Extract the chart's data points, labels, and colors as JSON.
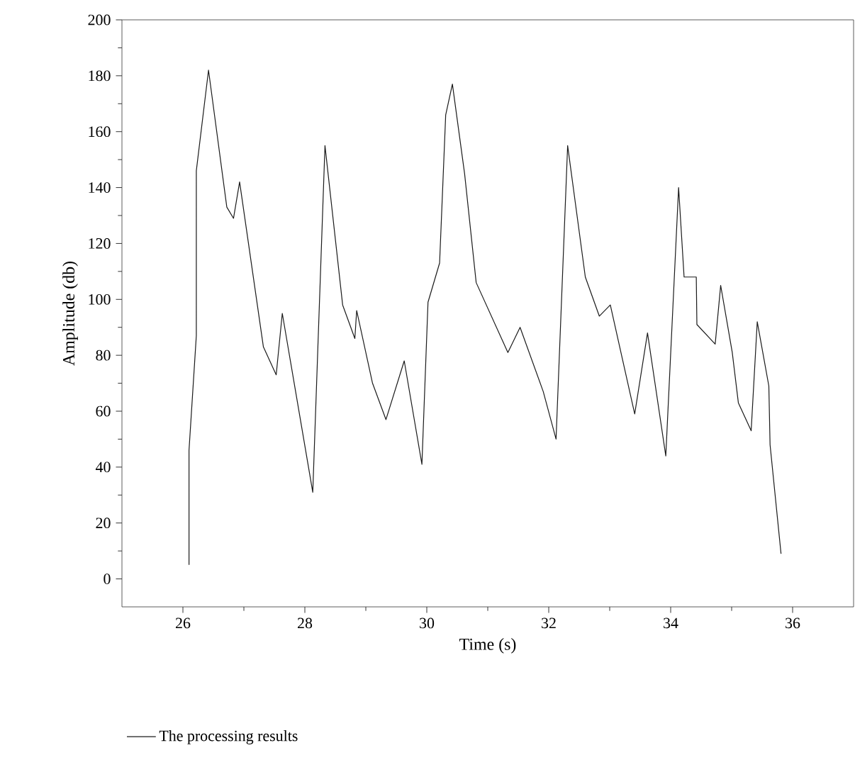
{
  "chart_data": {
    "type": "line",
    "xlabel": "Time (s)",
    "ylabel": "Amplitude (db)",
    "xlim": [
      25,
      37
    ],
    "xticks": [
      26,
      28,
      30,
      32,
      34,
      36
    ],
    "ylim": [
      -10,
      200
    ],
    "yticks": [
      0,
      20,
      40,
      60,
      80,
      100,
      120,
      140,
      160,
      180,
      200
    ],
    "grid": false,
    "legend": "bottom",
    "marker": "none",
    "line_style": "solid",
    "series": [
      {
        "name": "The processing results",
        "color": "#1a1a1a",
        "x": [
          26.1,
          26.1,
          26.22,
          26.22,
          26.42,
          26.72,
          26.83,
          26.93,
          27.32,
          27.53,
          27.63,
          28.13,
          28.33,
          28.62,
          28.82,
          28.85,
          29.11,
          29.33,
          29.63,
          29.92,
          30.02,
          30.21,
          30.31,
          30.42,
          30.62,
          30.81,
          31.33,
          31.53,
          31.91,
          32.12,
          32.31,
          32.6,
          32.83,
          33.01,
          33.41,
          33.62,
          33.92,
          34.13,
          34.22,
          34.42,
          34.43,
          34.73,
          34.82,
          35.01,
          35.11,
          35.32,
          35.42,
          35.61,
          35.63,
          35.81
        ],
        "values": [
          5,
          46,
          87,
          146,
          182,
          133,
          129,
          142,
          83,
          73,
          95,
          31,
          155,
          98,
          86,
          96,
          70,
          57,
          78,
          41,
          99,
          113,
          166,
          177,
          145,
          106,
          81,
          90,
          67,
          50,
          155,
          108,
          94,
          98,
          59,
          88,
          44,
          140,
          108,
          108,
          91,
          84,
          105,
          81,
          63,
          53,
          92,
          69,
          48,
          9
        ]
      }
    ]
  }
}
